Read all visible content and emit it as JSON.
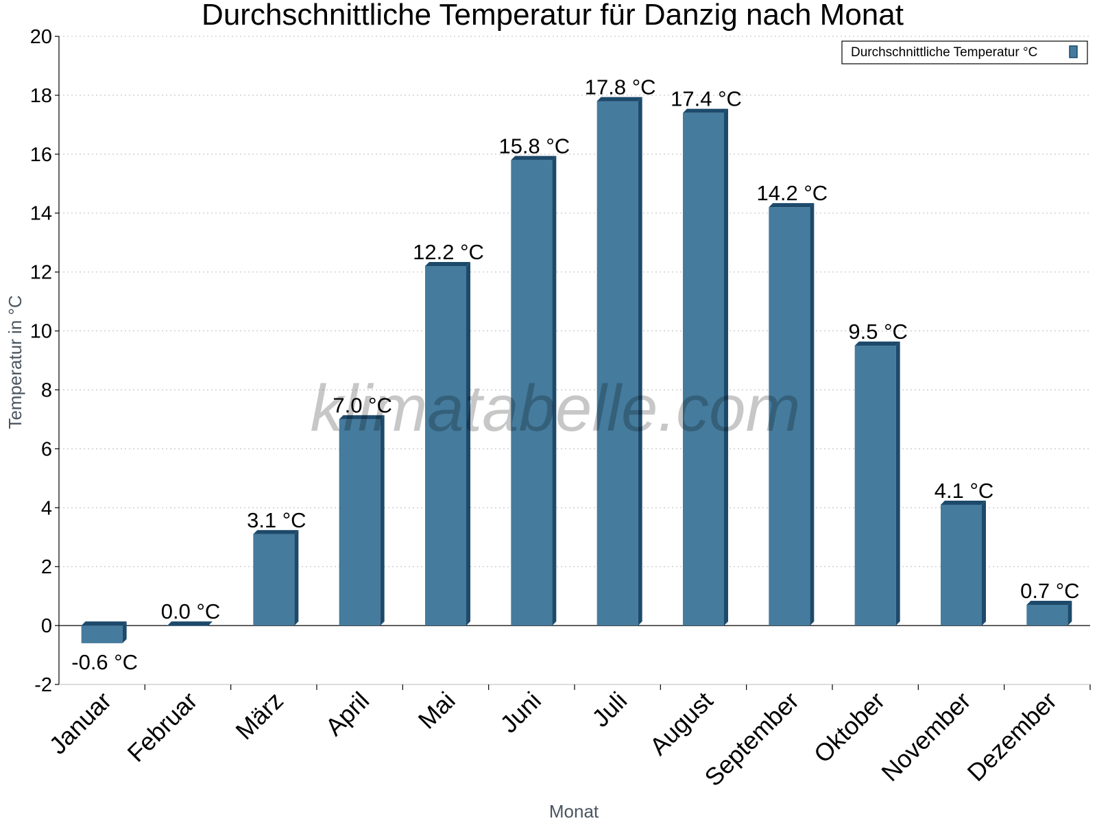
{
  "chart_data": {
    "type": "bar",
    "title": "Durchschnittliche Temperatur für Danzig nach Monat",
    "xlabel": "Monat",
    "ylabel": "Temperatur in °C",
    "categories": [
      "Januar",
      "Februar",
      "März",
      "April",
      "Mai",
      "Juni",
      "Juli",
      "August",
      "September",
      "Oktober",
      "November",
      "Dezember"
    ],
    "series": [
      {
        "name": "Durchschnittliche Temperatur °C",
        "values": [
          -0.6,
          0.0,
          3.1,
          7.0,
          12.2,
          15.8,
          17.8,
          17.4,
          14.2,
          9.5,
          4.1,
          0.7
        ],
        "labels": [
          "-0.6 °C",
          "0.0 °C",
          "3.1 °C",
          "7.0 °C",
          "12.2 °C",
          "15.8 °C",
          "17.8 °C",
          "17.4 °C",
          "14.2 °C",
          "9.5 °C",
          "4.1 °C",
          "0.7 °C"
        ]
      }
    ],
    "ylim": [
      -2,
      20
    ],
    "yticks": [
      -2,
      0,
      2,
      4,
      6,
      8,
      10,
      12,
      14,
      16,
      18,
      20
    ],
    "grid": true,
    "legend_position": "top-right",
    "colors": {
      "bar": "#457b9d",
      "bar_dark": "#1d4a6b",
      "grid": "#bbbbbb",
      "axis": "#000000"
    }
  },
  "watermark": "klimatabelle.com"
}
